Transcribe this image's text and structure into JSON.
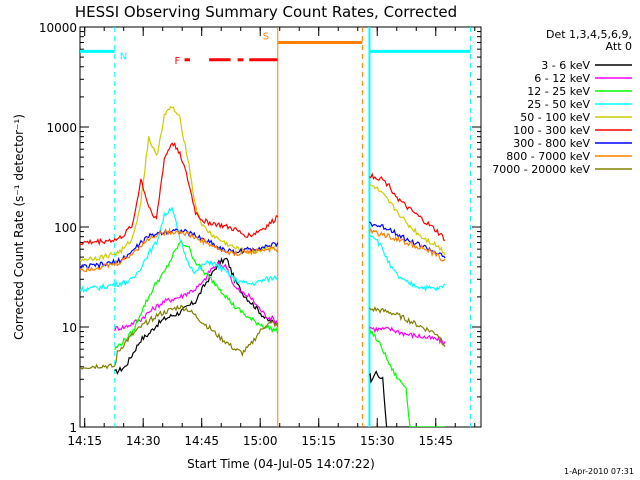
{
  "chart_data": {
    "type": "line",
    "title": "HESSI Observing Summary Count Rates, Corrected",
    "xlabel": "Start Time (04-Jul-05 14:07:22)",
    "ylabel": "Corrected Count Rate (s⁻¹ detector⁻¹)",
    "yscale": "log",
    "ylim": [
      1,
      10000
    ],
    "xlim_minutes": [
      6.4,
      109.2
    ],
    "x_unit": "minutes after 14:07:22",
    "x_ticks": [
      {
        "label": "14:15",
        "value": 7.6
      },
      {
        "label": "14:30",
        "value": 22.6
      },
      {
        "label": "14:45",
        "value": 37.6
      },
      {
        "label": "15:00",
        "value": 52.6
      },
      {
        "label": "15:15",
        "value": 67.6
      },
      {
        "label": "15:30",
        "value": 82.6
      },
      {
        "label": "15:45",
        "value": 97.6
      }
    ],
    "y_ticks": [
      {
        "label": "1",
        "value": 1
      },
      {
        "label": "10",
        "value": 10
      },
      {
        "label": "100",
        "value": 100
      },
      {
        "label": "1000",
        "value": 1000
      },
      {
        "label": "10000",
        "value": 10000
      }
    ],
    "legend_header": [
      "Det 1,3,4,5,6,9,",
      "Att 0"
    ],
    "legend_position": "right",
    "timestamp": "1-Apr-2010 07:31",
    "gaps": [
      [
        57.1,
        80.6
      ]
    ],
    "series": [
      {
        "name": "3 - 6 keV",
        "color": "#000000",
        "x": [
          15.3,
          18,
          20,
          22,
          24,
          26,
          28,
          30,
          32,
          34,
          36,
          38,
          40,
          42,
          44,
          46,
          48,
          50,
          52,
          54,
          56,
          57.1
        ],
        "y": [
          3.5,
          4.0,
          5.5,
          7.5,
          8.5,
          10.5,
          12,
          13,
          14,
          16,
          18,
          25,
          33,
          44,
          48,
          30,
          22,
          18,
          15,
          12,
          11,
          11
        ],
        "x2": [
          80.6,
          81,
          82,
          83,
          84,
          85,
          86,
          87,
          88,
          90,
          94,
          98,
          100
        ],
        "y2": [
          3.5,
          3.0,
          3.5,
          3.2,
          3.0,
          1.0,
          1.0,
          1.0,
          1.0,
          1.0,
          1.0,
          1.0,
          1.0
        ]
      },
      {
        "name": "6 - 12 keV",
        "color": "#ff00ff",
        "x": [
          15.3,
          16,
          18,
          20,
          22,
          24,
          26,
          28,
          30,
          32,
          34,
          36,
          38,
          40,
          42,
          44,
          46,
          48,
          50,
          52,
          54,
          56,
          57.1
        ],
        "y": [
          9.5,
          9.8,
          10,
          11,
          12,
          14,
          16,
          18,
          19,
          20,
          22,
          24,
          28,
          38,
          42,
          40,
          25,
          22,
          20,
          16,
          13,
          12,
          11
        ],
        "x2": [
          80.6,
          82,
          84,
          86,
          88,
          90,
          94,
          98,
          100
        ],
        "y2": [
          10,
          9.5,
          9.5,
          9.5,
          9.0,
          8.5,
          8.0,
          7.5,
          7.0
        ]
      },
      {
        "name": "12 - 25 keV",
        "color": "#00ff00",
        "x": [
          15.3,
          18,
          20,
          22,
          24,
          26,
          28,
          30,
          32,
          34,
          36,
          38,
          40,
          42,
          44,
          46,
          48,
          50,
          52,
          54,
          56,
          57.1
        ],
        "y": [
          6.0,
          7.5,
          9.0,
          14,
          20,
          28,
          35,
          50,
          70,
          65,
          45,
          36,
          30,
          25,
          20,
          16,
          14,
          12,
          11,
          10,
          9.5,
          9.0
        ],
        "x2": [
          80.6,
          82,
          84,
          86,
          88,
          90,
          91,
          94,
          98,
          100
        ],
        "y2": [
          9.5,
          8.0,
          6.0,
          4.0,
          3.0,
          2.5,
          1.0,
          1.0,
          1.0,
          1.0
        ]
      },
      {
        "name": "25 - 50 keV",
        "color": "#00ffff",
        "x": [
          0,
          4,
          8,
          12,
          16,
          18,
          20,
          22,
          24,
          26,
          28,
          30,
          32,
          34,
          36,
          38,
          40,
          42,
          44,
          46,
          48,
          50,
          52,
          54,
          56,
          57.1
        ],
        "y": [
          25,
          24,
          24,
          25,
          27,
          28,
          30,
          40,
          55,
          70,
          130,
          160,
          75,
          45,
          35,
          42,
          45,
          40,
          35,
          30,
          28,
          27,
          28,
          30,
          31,
          32
        ],
        "x2": [
          80.6,
          82,
          84,
          86,
          88,
          90,
          94,
          98,
          100
        ],
        "y2": [
          85,
          80,
          60,
          40,
          32,
          28,
          25,
          24,
          26
        ]
      },
      {
        "name": "50 - 100 keV",
        "color": "#cccc00",
        "x": [
          0,
          4,
          8,
          12,
          16,
          18,
          20,
          22,
          24,
          26,
          28,
          30,
          32,
          34,
          36,
          38,
          40,
          42,
          44,
          46,
          48,
          50,
          52,
          54,
          56,
          57.1
        ],
        "y": [
          48,
          46,
          48,
          50,
          55,
          62,
          80,
          180,
          800,
          500,
          1300,
          1600,
          1200,
          500,
          160,
          100,
          85,
          75,
          68,
          62,
          58,
          56,
          58,
          62,
          64,
          66
        ],
        "x2": [
          80.6,
          82,
          84,
          86,
          88,
          90,
          94,
          98,
          100
        ],
        "y2": [
          260,
          250,
          210,
          170,
          140,
          110,
          80,
          65,
          55
        ]
      },
      {
        "name": "100 - 300 keV",
        "color": "#ff0000",
        "x": [
          0,
          4,
          8,
          12,
          16,
          18,
          20,
          22,
          24,
          26,
          28,
          30,
          32,
          34,
          36,
          38,
          40,
          42,
          44,
          46,
          48,
          50,
          52,
          54,
          56,
          57.1
        ],
        "y": [
          72,
          68,
          70,
          72,
          75,
          85,
          110,
          300,
          160,
          120,
          480,
          700,
          560,
          300,
          140,
          115,
          110,
          105,
          100,
          95,
          85,
          82,
          90,
          100,
          115,
          130
        ],
        "x2": [
          80.6,
          82,
          84,
          86,
          88,
          90,
          94,
          98,
          100
        ],
        "y2": [
          330,
          320,
          300,
          250,
          190,
          160,
          120,
          90,
          75
        ]
      },
      {
        "name": "300 - 800 keV",
        "color": "#0000ff",
        "x": [
          0,
          4,
          8,
          12,
          16,
          18,
          20,
          22,
          24,
          26,
          28,
          30,
          32,
          34,
          36,
          38,
          40,
          42,
          44,
          46,
          48,
          50,
          52,
          54,
          56,
          57.1
        ],
        "y": [
          42,
          40,
          40,
          42,
          45,
          50,
          58,
          70,
          80,
          86,
          90,
          92,
          92,
          88,
          82,
          75,
          70,
          62,
          58,
          56,
          58,
          60,
          62,
          64,
          66,
          68
        ],
        "x2": [
          80.6,
          82,
          84,
          86,
          88,
          90,
          94,
          98,
          100
        ],
        "y2": [
          110,
          105,
          100,
          95,
          85,
          75,
          65,
          55,
          48
        ]
      },
      {
        "name": "800 - 7000 keV",
        "color": "#ff8000",
        "x": [
          0,
          4,
          8,
          12,
          16,
          18,
          20,
          22,
          24,
          26,
          28,
          30,
          32,
          34,
          36,
          38,
          40,
          42,
          44,
          46,
          48,
          50,
          52,
          54,
          56,
          57.1
        ],
        "y": [
          40,
          38,
          38,
          40,
          43,
          48,
          55,
          66,
          76,
          84,
          88,
          90,
          90,
          85,
          78,
          72,
          66,
          60,
          56,
          54,
          56,
          57,
          58,
          60,
          60,
          58
        ],
        "x2": [
          80.6,
          82,
          84,
          86,
          88,
          90,
          94,
          98,
          100
        ],
        "y2": [
          90,
          88,
          84,
          80,
          75,
          70,
          62,
          52,
          45
        ]
      },
      {
        "name": "7000 - 20000 keV",
        "color": "#808000",
        "x": [
          0,
          4,
          8,
          12,
          15.3,
          16,
          18,
          20,
          22,
          24,
          26,
          28,
          30,
          32,
          34,
          36,
          38,
          40,
          42,
          44,
          46,
          48,
          50,
          52,
          54,
          56,
          57.1
        ],
        "y": [
          4.0,
          3.8,
          4.0,
          4.1,
          4.0,
          5.5,
          7.0,
          8.5,
          10,
          11.5,
          13,
          14,
          15,
          16,
          15,
          13,
          11,
          9.5,
          8.0,
          7.0,
          6.0,
          5.5,
          6.5,
          8.5,
          10.5,
          11,
          10
        ],
        "x2": [
          80.6,
          82,
          84,
          86,
          88,
          90,
          94,
          98,
          100
        ],
        "y2": [
          15,
          15,
          14.5,
          14,
          13,
          12,
          10,
          8.5,
          6.5
        ]
      }
    ],
    "annotations": [
      {
        "text": "N",
        "color": "#00ffff",
        "level": 5700,
        "x_from": 0,
        "x_to": 15.3,
        "vlines": [
          15.3
        ],
        "dashed": true,
        "level2": 5700,
        "x2_from": 80.6,
        "x2_to": 106.5,
        "vlines2": [
          106.5
        ]
      },
      {
        "text": "S",
        "color": "#ff8000",
        "level": 7000,
        "x_from": 57.1,
        "x_to": 78.8,
        "vlines": [
          57.1
        ],
        "dashed_vlines": [
          78.8
        ]
      },
      {
        "text": "F",
        "color": "#ff0000",
        "level": 4700,
        "segments": [
          [
            33.2,
            34.6
          ],
          [
            39.5,
            45.0
          ],
          [
            46.8,
            48.3
          ],
          [
            49.8,
            57.0
          ]
        ]
      }
    ]
  }
}
